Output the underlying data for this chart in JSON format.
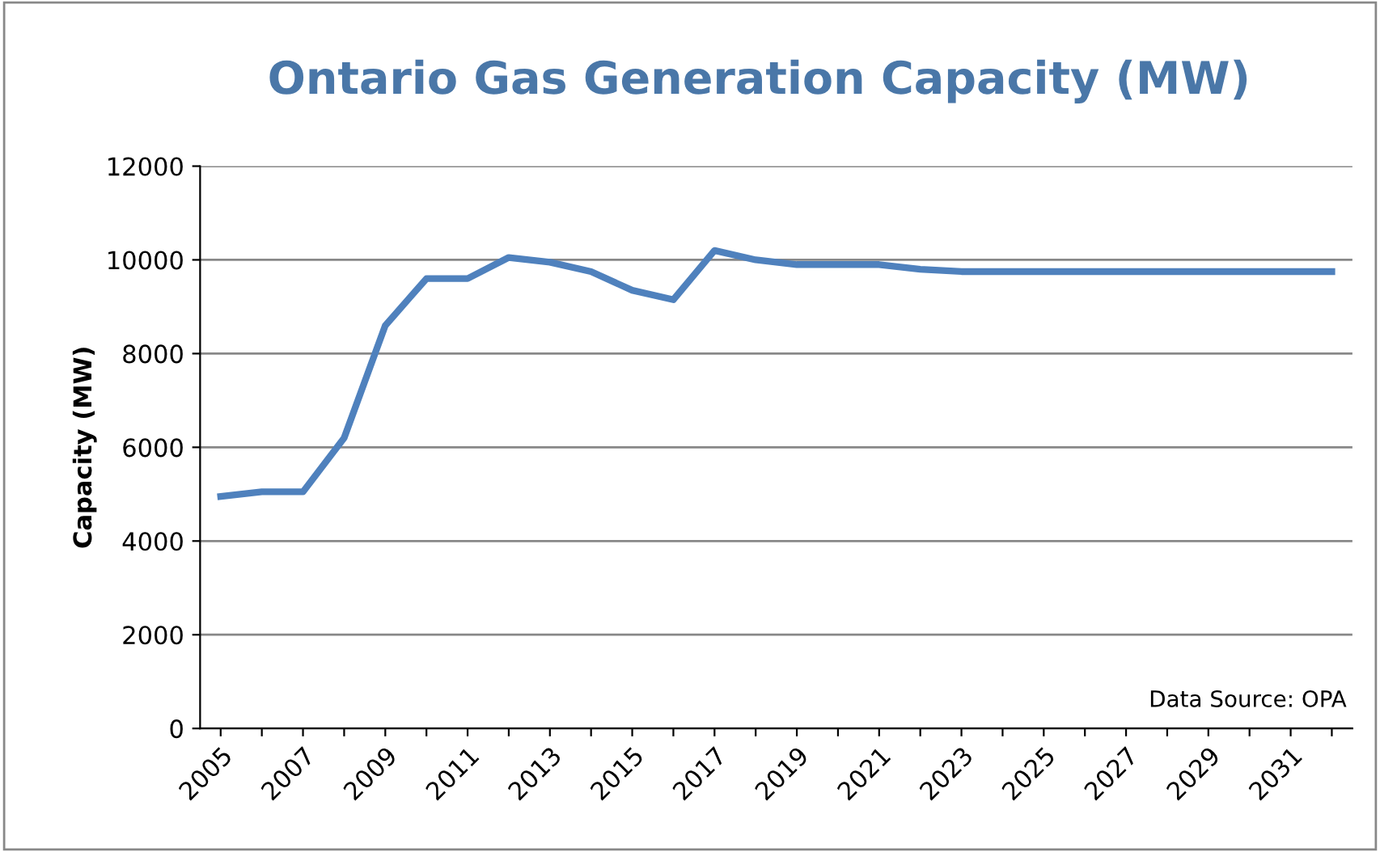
{
  "chart_data": {
    "type": "line",
    "title": "Ontario Gas Generation Capacity (MW)",
    "ylabel": "Capacity (MW)",
    "categories": [
      "2005",
      null,
      "2007",
      null,
      "2009",
      null,
      "2011",
      null,
      "2013",
      null,
      "2015",
      null,
      "2017",
      null,
      "2019",
      null,
      "2021",
      null,
      "2023",
      null,
      "2025",
      null,
      "2027",
      null,
      "2029",
      null,
      "2031",
      null
    ],
    "series": [
      {
        "color": "#4f81bd",
        "values": [
          4950,
          5050,
          5050,
          6200,
          8600,
          9600,
          9600,
          10050,
          9950,
          9750,
          9350,
          9150,
          10200,
          10000,
          9900,
          9900,
          9900,
          9800,
          9750,
          9750,
          9750,
          9750,
          9750,
          9750,
          9750,
          9750,
          9750,
          9750
        ]
      }
    ],
    "ylim": [
      0,
      12000
    ],
    "yticks": [
      0,
      2000,
      4000,
      6000,
      8000,
      10000,
      12000
    ],
    "grid": "y",
    "legend": false,
    "marker": "none",
    "line_style": "solid",
    "annotations": [
      "Data Source: OPA"
    ]
  }
}
